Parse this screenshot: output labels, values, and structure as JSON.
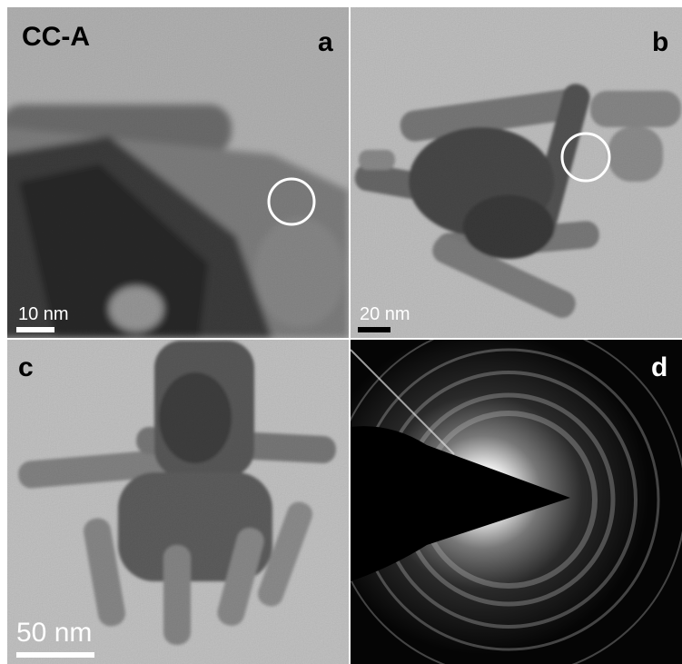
{
  "figure": {
    "sample": "CC-A",
    "panels": [
      {
        "label": "a",
        "scale_bar": "10 nm"
      },
      {
        "label": "b",
        "scale_bar": "20 nm"
      },
      {
        "label": "c",
        "scale_bar": "50 nm"
      },
      {
        "label": "d"
      }
    ]
  }
}
